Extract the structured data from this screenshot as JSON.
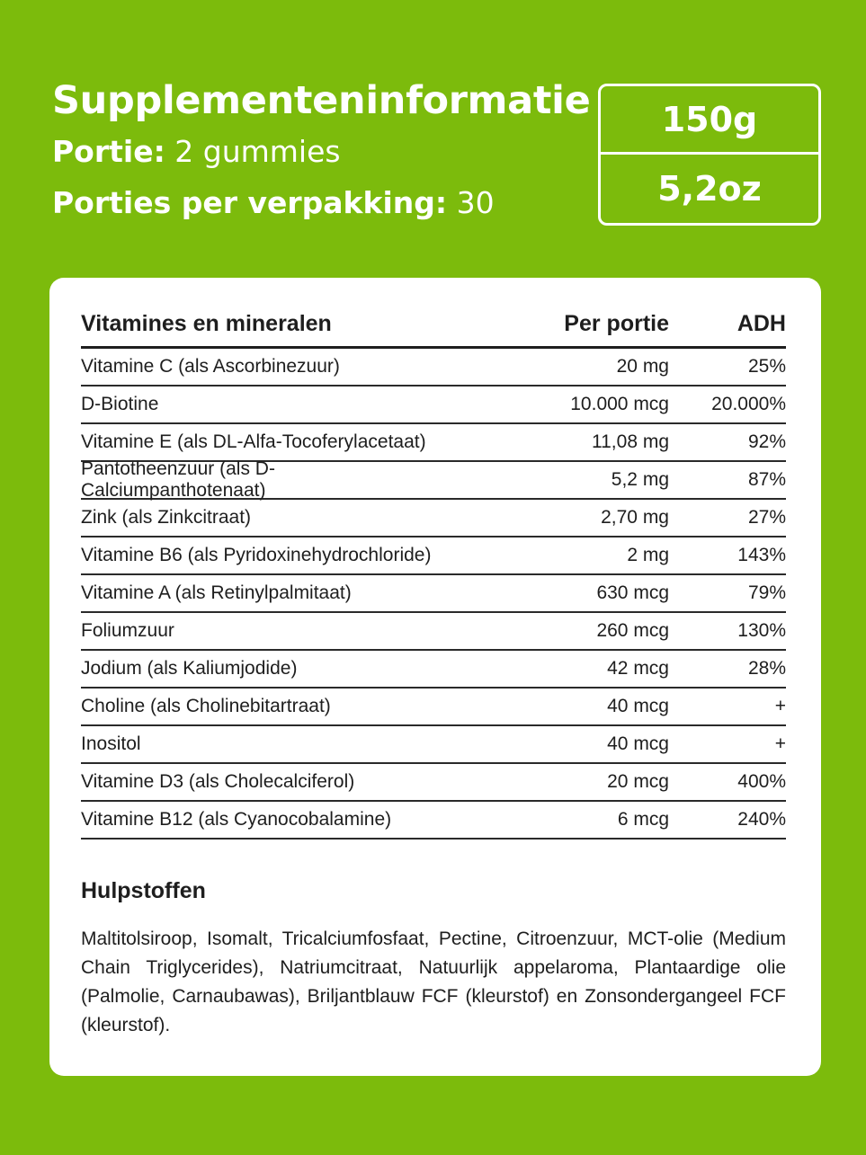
{
  "header": {
    "title": "Supplementeninformatie",
    "serving_label": "Portie:",
    "serving_value": "2 gummies",
    "servings_label": "Porties per verpakking:",
    "servings_value": "30"
  },
  "weight": {
    "grams": "150g",
    "ounces": "5,2oz"
  },
  "table": {
    "headers": {
      "name": "Vitamines en mineralen",
      "amount": "Per portie",
      "adh": "ADH"
    },
    "rows": [
      {
        "name": "Vitamine C (als Ascorbinezuur)",
        "amount": "20 mg",
        "adh": "25%"
      },
      {
        "name": "D-Biotine",
        "amount": "10.000 mcg",
        "adh": "20.000%"
      },
      {
        "name": "Vitamine E (als DL-Alfa-Tocoferylacetaat)",
        "amount": "11,08 mg",
        "adh": "92%"
      },
      {
        "name": "Pantotheenzuur (als D-Calciumpanthotenaat)",
        "amount": "5,2 mg",
        "adh": "87%"
      },
      {
        "name": "Zink (als Zinkcitraat)",
        "amount": "2,70 mg",
        "adh": "27%"
      },
      {
        "name": "Vitamine B6 (als Pyridoxinehydrochloride)",
        "amount": "2 mg",
        "adh": "143%"
      },
      {
        "name": "Vitamine A (als Retinylpalmitaat)",
        "amount": "630 mcg",
        "adh": "79%"
      },
      {
        "name": "Foliumzuur",
        "amount": "260 mcg",
        "adh": "130%"
      },
      {
        "name": "Jodium (als Kaliumjodide)",
        "amount": "42 mcg",
        "adh": "28%"
      },
      {
        "name": "Choline (als Cholinebitartraat)",
        "amount": "40 mcg",
        "adh": "+"
      },
      {
        "name": "Inositol",
        "amount": "40 mcg",
        "adh": "+"
      },
      {
        "name": "Vitamine D3 (als Cholecalciferol)",
        "amount": "20 mcg",
        "adh": "400%"
      },
      {
        "name": "Vitamine B12 (als Cyanocobalamine)",
        "amount": "6 mcg",
        "adh": "240%"
      }
    ]
  },
  "excipients": {
    "title": "Hulpstoffen",
    "text": "Maltitolsiroop, Isomalt, Tricalciumfosfaat, Pectine, Citroenzuur, MCT-olie (Medium Chain Triglycerides), Natriumcitraat, Natuurlijk appelaroma, Plantaardige olie (Palmolie, Carnaubawas), Briljantblauw FCF (kleurstof) en Zonsondergangeel FCF (kleurstof)."
  },
  "colors": {
    "background": "#7cbb0c",
    "card": "#ffffff",
    "text": "#1e1e1e"
  }
}
